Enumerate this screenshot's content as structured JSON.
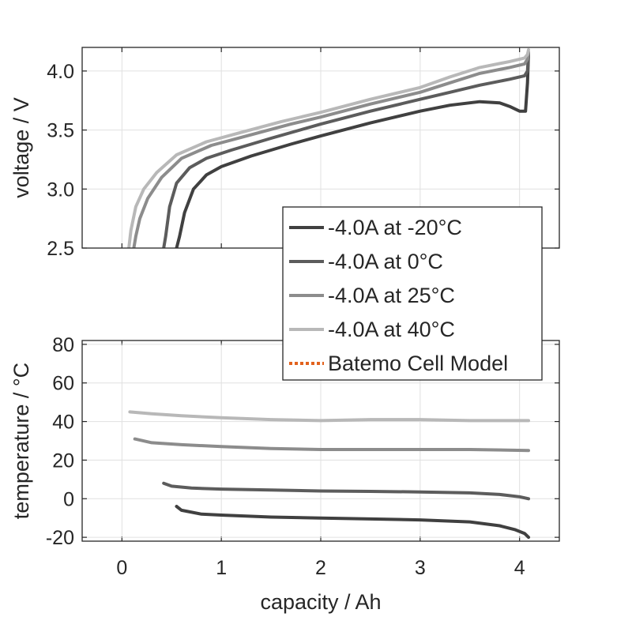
{
  "chart_data": [
    {
      "type": "line",
      "panel": "top",
      "xlabel": "",
      "ylabel": "voltage / V",
      "xlim": [
        -0.4,
        4.4
      ],
      "ylim": [
        2.5,
        4.2
      ],
      "xticks": [
        0,
        1,
        2,
        3,
        4
      ],
      "yticks": [
        2.5,
        3.0,
        3.5,
        4.0
      ],
      "ytick_labels": [
        "2.5",
        "3.0",
        "3.5",
        "4.0"
      ],
      "grid": true,
      "series": [
        {
          "name": "-4.0A at -20°C",
          "color": "#404040",
          "x": [
            0.55,
            0.58,
            0.63,
            0.72,
            0.85,
            1.0,
            1.3,
            1.7,
            2.0,
            2.5,
            3.0,
            3.3,
            3.6,
            3.8,
            3.9,
            4.0,
            4.06,
            4.08,
            4.09
          ],
          "y": [
            2.5,
            2.6,
            2.8,
            3.0,
            3.12,
            3.19,
            3.28,
            3.38,
            3.45,
            3.56,
            3.66,
            3.71,
            3.74,
            3.73,
            3.7,
            3.66,
            3.66,
            3.9,
            4.15
          ]
        },
        {
          "name": "-4.0A at 0°C",
          "color": "#5c5c5c",
          "x": [
            0.42,
            0.44,
            0.48,
            0.55,
            0.68,
            0.85,
            1.1,
            1.5,
            2.0,
            2.5,
            3.0,
            3.3,
            3.6,
            3.9,
            4.05,
            4.08,
            4.09
          ],
          "y": [
            2.5,
            2.6,
            2.85,
            3.05,
            3.18,
            3.26,
            3.33,
            3.43,
            3.55,
            3.66,
            3.76,
            3.82,
            3.88,
            3.93,
            3.96,
            4.0,
            4.15
          ]
        },
        {
          "name": "-4.0A at 25°C",
          "color": "#8c8c8c",
          "x": [
            0.12,
            0.14,
            0.18,
            0.26,
            0.4,
            0.6,
            0.9,
            1.3,
            1.7,
            2.0,
            2.5,
            3.0,
            3.3,
            3.6,
            3.9,
            4.05,
            4.08,
            4.09
          ],
          "y": [
            2.5,
            2.6,
            2.75,
            2.92,
            3.1,
            3.26,
            3.37,
            3.46,
            3.55,
            3.61,
            3.72,
            3.82,
            3.9,
            3.98,
            4.03,
            4.06,
            4.1,
            4.16
          ]
        },
        {
          "name": "-4.0A at 40°C",
          "color": "#b8b8b8",
          "x": [
            0.07,
            0.09,
            0.14,
            0.22,
            0.35,
            0.55,
            0.85,
            1.2,
            1.6,
            2.0,
            2.5,
            3.0,
            3.3,
            3.6,
            3.9,
            4.05,
            4.08,
            4.09
          ],
          "y": [
            2.5,
            2.65,
            2.85,
            3.0,
            3.14,
            3.29,
            3.4,
            3.48,
            3.57,
            3.65,
            3.76,
            3.86,
            3.95,
            4.03,
            4.08,
            4.11,
            4.14,
            4.18
          ]
        }
      ]
    },
    {
      "type": "line",
      "panel": "bottom",
      "xlabel": "capacity / Ah",
      "ylabel": "temperature / °C",
      "xlim": [
        -0.4,
        4.4
      ],
      "ylim": [
        -22,
        82
      ],
      "xticks": [
        0,
        1,
        2,
        3,
        4
      ],
      "xtick_labels": [
        "0",
        "1",
        "2",
        "3",
        "4"
      ],
      "yticks": [
        -20,
        0,
        20,
        40,
        60,
        80
      ],
      "ytick_labels": [
        "-20",
        "0",
        "20",
        "40",
        "60",
        "80"
      ],
      "grid": true,
      "series": [
        {
          "name": "-4.0A at -20°C",
          "color": "#404040",
          "x": [
            0.55,
            0.6,
            0.8,
            1.0,
            1.5,
            2.0,
            2.5,
            3.0,
            3.5,
            3.8,
            3.95,
            4.05,
            4.09
          ],
          "y": [
            -4,
            -6,
            -8,
            -8.5,
            -9.5,
            -10,
            -10.5,
            -11,
            -12,
            -14,
            -16,
            -18,
            -20
          ]
        },
        {
          "name": "-4.0A at 0°C",
          "color": "#5c5c5c",
          "x": [
            0.42,
            0.5,
            0.7,
            1.0,
            1.5,
            2.0,
            2.5,
            3.0,
            3.5,
            3.8,
            4.0,
            4.09
          ],
          "y": [
            8,
            6.5,
            5.5,
            5,
            4.5,
            4,
            3.8,
            3.5,
            3,
            2.2,
            1,
            0
          ]
        },
        {
          "name": "-4.0A at 25°C",
          "color": "#8c8c8c",
          "x": [
            0.13,
            0.3,
            0.6,
            1.0,
            1.5,
            2.0,
            2.5,
            3.0,
            3.5,
            4.09
          ],
          "y": [
            31,
            29,
            28,
            27,
            26,
            25.5,
            25.5,
            25.5,
            25.5,
            25
          ]
        },
        {
          "name": "-4.0A at 40°C",
          "color": "#b8b8b8",
          "x": [
            0.08,
            0.3,
            0.6,
            1.0,
            1.5,
            2.0,
            2.5,
            3.0,
            3.5,
            4.09
          ],
          "y": [
            45,
            44,
            43,
            42,
            41,
            40.5,
            41,
            41,
            40.5,
            40.5
          ]
        }
      ]
    }
  ],
  "legend": {
    "placement": "center-right",
    "entries": [
      {
        "label": "-4.0A at -20°C",
        "color": "#404040",
        "style": "solid"
      },
      {
        "label": "-4.0A at 0°C",
        "color": "#5c5c5c",
        "style": "solid"
      },
      {
        "label": "-4.0A at 25°C",
        "color": "#8c8c8c",
        "style": "solid"
      },
      {
        "label": "-4.0A at 40°C",
        "color": "#b8b8b8",
        "style": "solid"
      },
      {
        "label": "Batemo Cell Model",
        "color": "#e2621d",
        "style": "dotted"
      }
    ]
  }
}
